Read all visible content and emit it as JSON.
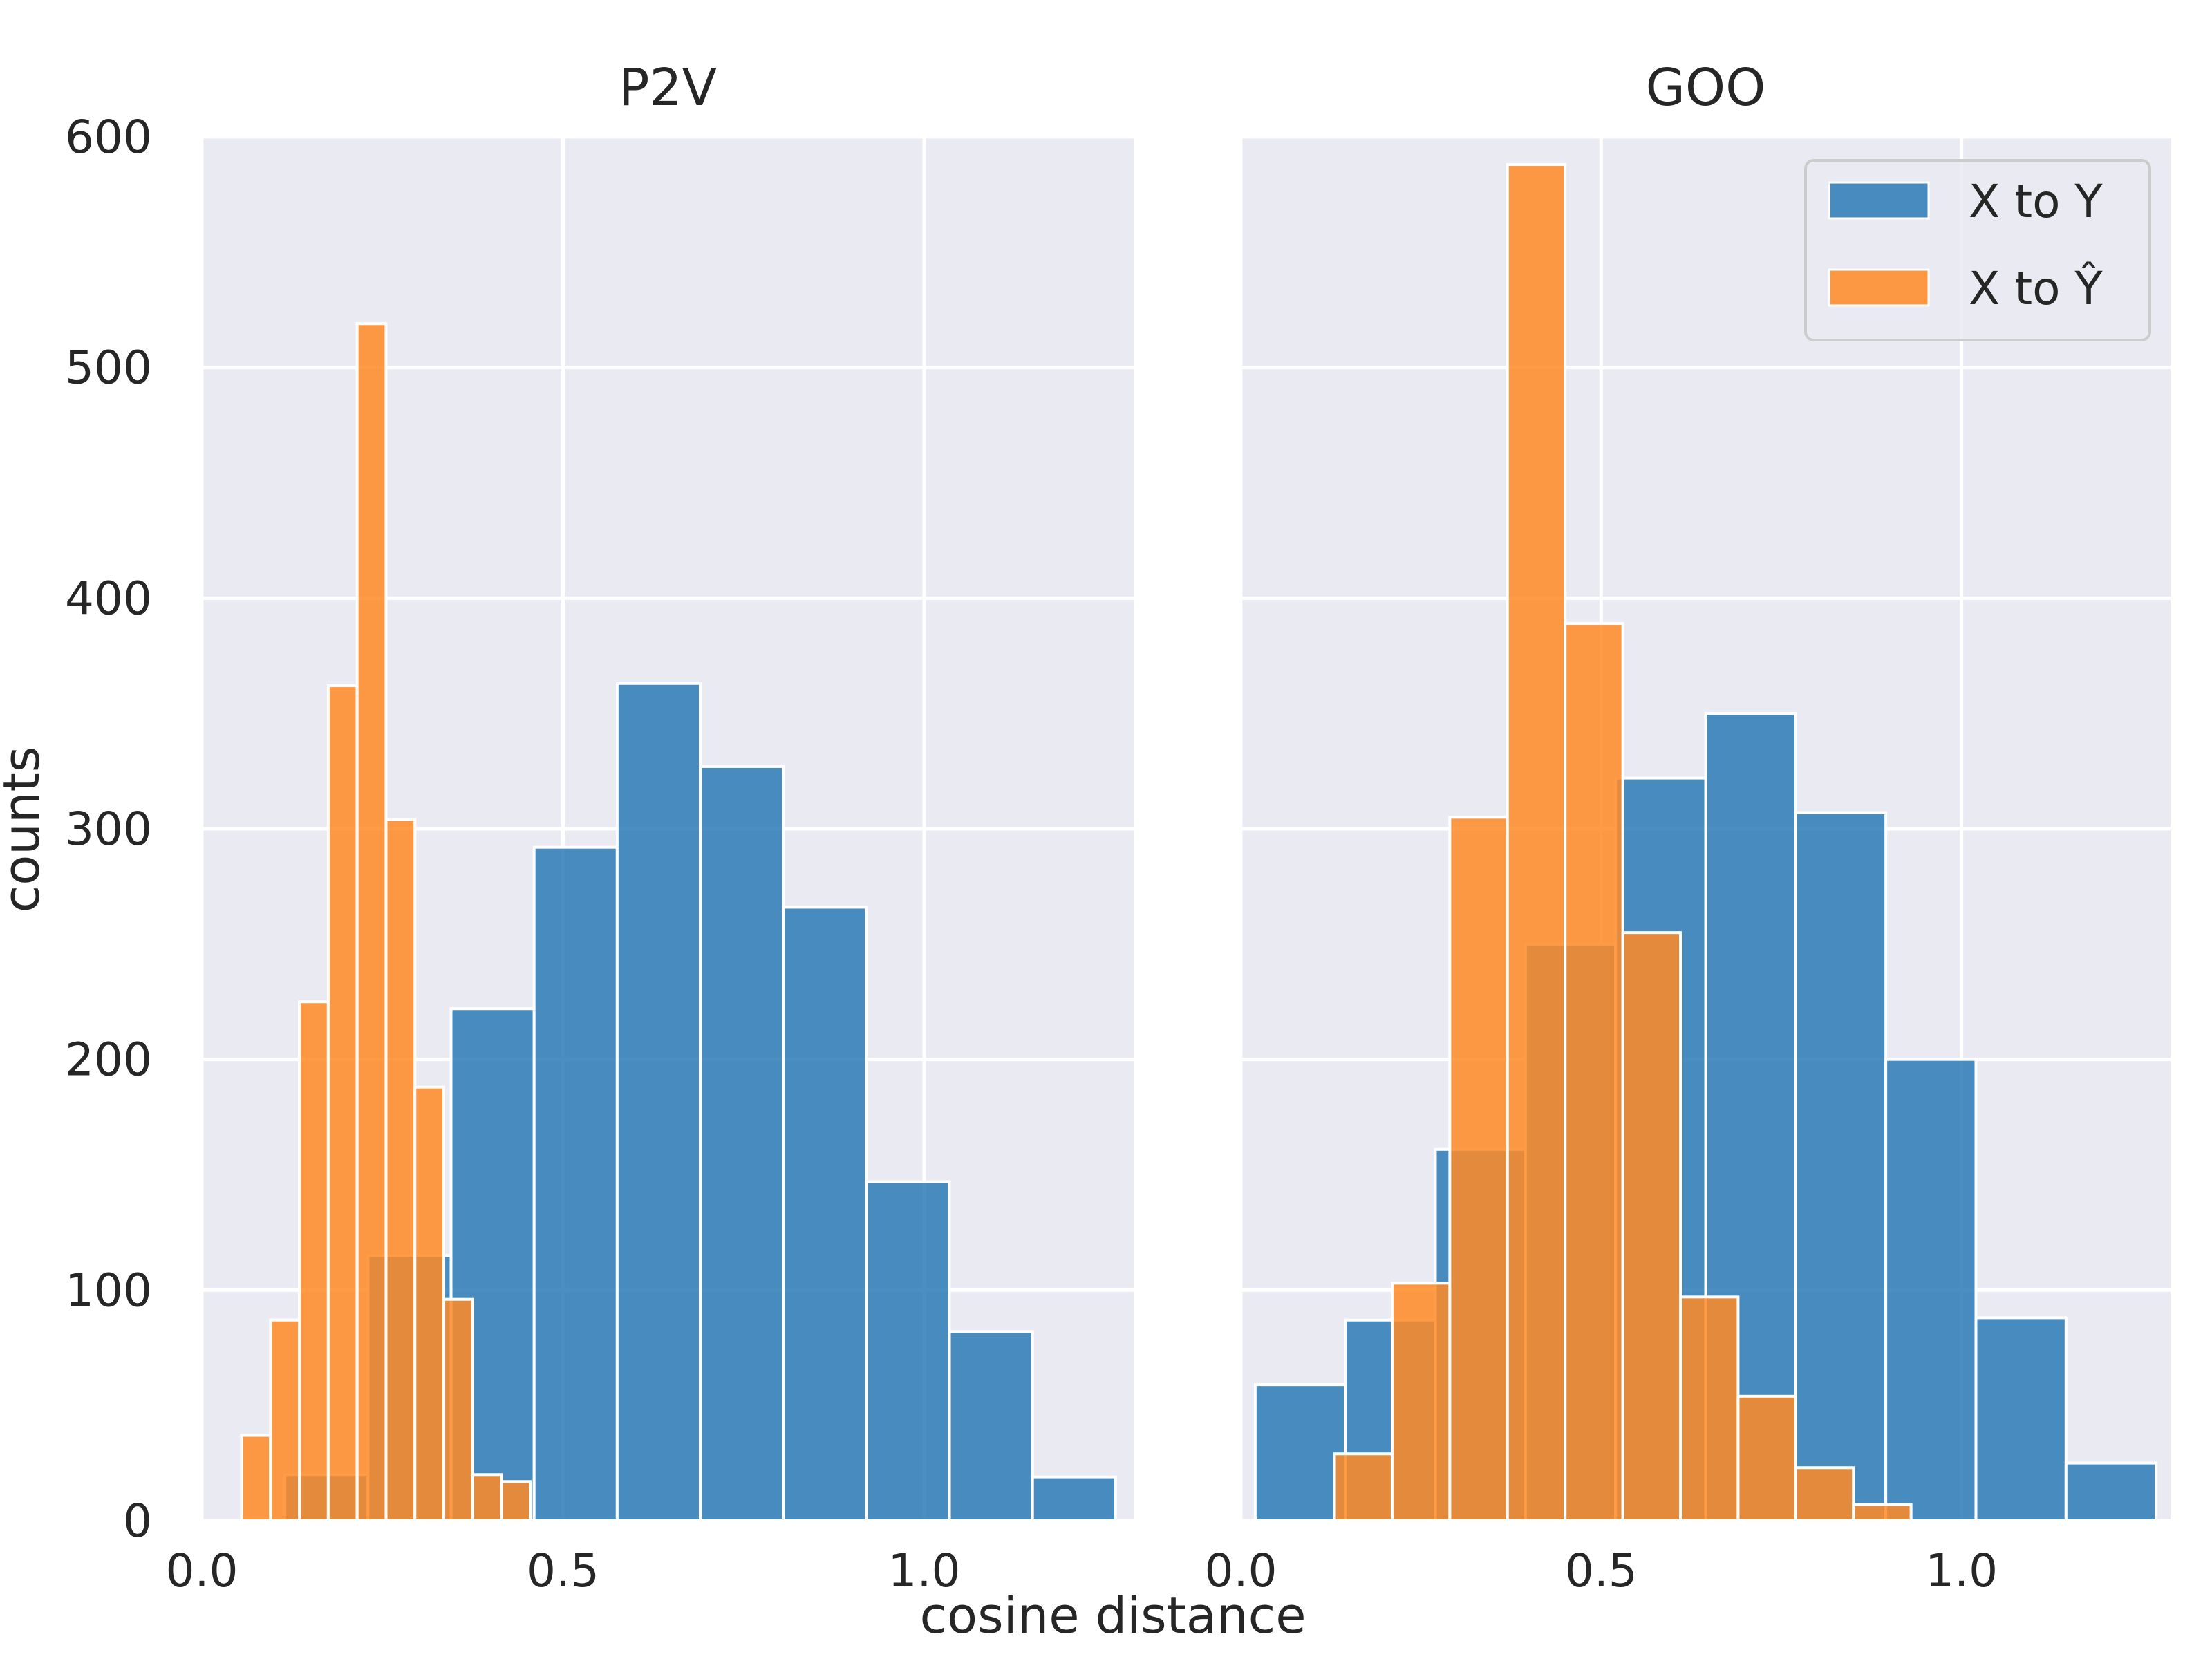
{
  "chart_data": {
    "type": "histogram",
    "xlabel": "cosine distance",
    "ylabel": "counts",
    "shared_y": true,
    "ylim": [
      0,
      600
    ],
    "yticks": [
      0,
      100,
      200,
      300,
      400,
      500,
      600
    ],
    "xticks": [
      0.0,
      0.5,
      1.0
    ],
    "legend": {
      "placement": "upper-right of right panel",
      "entries": [
        {
          "key": "x_to_y",
          "label": "X to Y",
          "color": "#2c7bb6"
        },
        {
          "key": "x_to_yhat",
          "label": "X to Ŷ",
          "color": "#ff8a25"
        }
      ]
    },
    "colors": {
      "background": "#eaeaf2",
      "grid": "#ffffff",
      "x_to_y": "#2c7bb6",
      "x_to_yhat": "#ff8a25"
    },
    "panels": [
      {
        "title": "P2V",
        "xlim": [
          0.0,
          1.29
        ],
        "series": [
          {
            "key": "x_to_y",
            "name": "X to Y",
            "bins": [
              {
                "x0": 0.115,
                "x1": 0.23,
                "count": 20
              },
              {
                "x0": 0.23,
                "x1": 0.345,
                "count": 115
              },
              {
                "x0": 0.345,
                "x1": 0.46,
                "count": 222
              },
              {
                "x0": 0.46,
                "x1": 0.575,
                "count": 292
              },
              {
                "x0": 0.575,
                "x1": 0.69,
                "count": 363
              },
              {
                "x0": 0.69,
                "x1": 0.805,
                "count": 327
              },
              {
                "x0": 0.805,
                "x1": 0.92,
                "count": 266
              },
              {
                "x0": 0.92,
                "x1": 1.035,
                "count": 147
              },
              {
                "x0": 1.035,
                "x1": 1.15,
                "count": 82
              },
              {
                "x0": 1.15,
                "x1": 1.265,
                "count": 19
              }
            ]
          },
          {
            "key": "x_to_yhat",
            "name": "X to Ŷ",
            "bins": [
              {
                "x0": 0.055,
                "x1": 0.095,
                "count": 37
              },
              {
                "x0": 0.095,
                "x1": 0.135,
                "count": 87
              },
              {
                "x0": 0.135,
                "x1": 0.175,
                "count": 225
              },
              {
                "x0": 0.175,
                "x1": 0.215,
                "count": 362
              },
              {
                "x0": 0.215,
                "x1": 0.255,
                "count": 519
              },
              {
                "x0": 0.255,
                "x1": 0.295,
                "count": 304
              },
              {
                "x0": 0.295,
                "x1": 0.335,
                "count": 188
              },
              {
                "x0": 0.335,
                "x1": 0.375,
                "count": 96
              },
              {
                "x0": 0.375,
                "x1": 0.415,
                "count": 20
              },
              {
                "x0": 0.415,
                "x1": 0.455,
                "count": 17
              }
            ]
          }
        ]
      },
      {
        "title": "GOO",
        "xlim": [
          0.0,
          1.29
        ],
        "series": [
          {
            "key": "x_to_y",
            "name": "X to Y",
            "bins": [
              {
                "x0": 0.02,
                "x1": 0.145,
                "count": 59
              },
              {
                "x0": 0.145,
                "x1": 0.27,
                "count": 87
              },
              {
                "x0": 0.27,
                "x1": 0.395,
                "count": 161
              },
              {
                "x0": 0.395,
                "x1": 0.52,
                "count": 250
              },
              {
                "x0": 0.52,
                "x1": 0.645,
                "count": 322
              },
              {
                "x0": 0.645,
                "x1": 0.77,
                "count": 350
              },
              {
                "x0": 0.77,
                "x1": 0.895,
                "count": 307
              },
              {
                "x0": 0.895,
                "x1": 1.02,
                "count": 200
              },
              {
                "x0": 1.02,
                "x1": 1.145,
                "count": 88
              },
              {
                "x0": 1.145,
                "x1": 1.27,
                "count": 25
              }
            ]
          },
          {
            "key": "x_to_yhat",
            "name": "X to Ŷ",
            "bins": [
              {
                "x0": 0.13,
                "x1": 0.21,
                "count": 29
              },
              {
                "x0": 0.21,
                "x1": 0.29,
                "count": 103
              },
              {
                "x0": 0.29,
                "x1": 0.37,
                "count": 305
              },
              {
                "x0": 0.37,
                "x1": 0.45,
                "count": 588
              },
              {
                "x0": 0.45,
                "x1": 0.53,
                "count": 389
              },
              {
                "x0": 0.53,
                "x1": 0.61,
                "count": 255
              },
              {
                "x0": 0.61,
                "x1": 0.69,
                "count": 97
              },
              {
                "x0": 0.69,
                "x1": 0.77,
                "count": 54
              },
              {
                "x0": 0.77,
                "x1": 0.85,
                "count": 23
              },
              {
                "x0": 0.85,
                "x1": 0.93,
                "count": 7
              }
            ]
          }
        ]
      }
    ]
  }
}
